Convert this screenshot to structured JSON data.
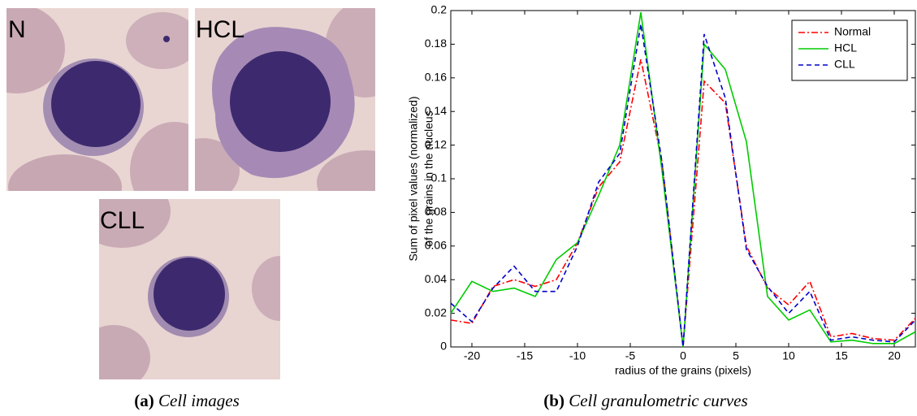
{
  "images": [
    {
      "label": "N"
    },
    {
      "label": "HCL"
    },
    {
      "label": "CLL"
    }
  ],
  "captions": [
    {
      "label": "(a)",
      "text": "Cell images"
    },
    {
      "label": "(b)",
      "text": "Cell granulometric curves"
    }
  ],
  "chart_data": {
    "type": "line",
    "xlabel": "radius of the grains (pixels)",
    "ylabel": [
      "Sum of pixel values (normalized)",
      "of the grains in the nucleus"
    ],
    "x": [
      -22,
      -20,
      -18,
      -16,
      -14,
      -12,
      -10,
      -8,
      -6,
      -4,
      -2,
      0,
      2,
      4,
      6,
      8,
      10,
      12,
      14,
      16,
      18,
      20,
      22
    ],
    "series": [
      {
        "name": "Normal",
        "color": "#ff0000",
        "dash": "dash-dot",
        "values": [
          0.016,
          0.014,
          0.036,
          0.04,
          0.036,
          0.04,
          0.062,
          0.095,
          0.11,
          0.171,
          0.11,
          0,
          0.158,
          0.145,
          0.06,
          0.035,
          0.025,
          0.039,
          0.006,
          0.008,
          0.005,
          0.004,
          0.017
        ]
      },
      {
        "name": "HCL",
        "color": "#00cc00",
        "dash": "solid",
        "values": [
          0.02,
          0.039,
          0.033,
          0.035,
          0.03,
          0.052,
          0.062,
          0.09,
          0.12,
          0.199,
          0.105,
          0,
          0.18,
          0.165,
          0.122,
          0.03,
          0.016,
          0.022,
          0.003,
          0.004,
          0.002,
          0.002,
          0.009
        ]
      },
      {
        "name": "CLL",
        "color": "#0000cc",
        "dash": "dashed",
        "values": [
          0.026,
          0.015,
          0.035,
          0.048,
          0.033,
          0.033,
          0.06,
          0.098,
          0.115,
          0.192,
          0.11,
          0,
          0.186,
          0.148,
          0.058,
          0.036,
          0.02,
          0.033,
          0.004,
          0.006,
          0.004,
          0.003,
          0.016
        ]
      }
    ],
    "xlim": [
      -22,
      22
    ],
    "ylim": [
      0,
      0.2
    ],
    "xticks": [
      -20,
      -15,
      -10,
      -5,
      0,
      5,
      10,
      15,
      20
    ],
    "yticks": [
      0,
      0.02,
      0.04,
      0.06,
      0.08,
      0.1,
      0.12,
      0.14,
      0.16,
      0.18,
      0.2
    ],
    "legend": "upper right"
  }
}
